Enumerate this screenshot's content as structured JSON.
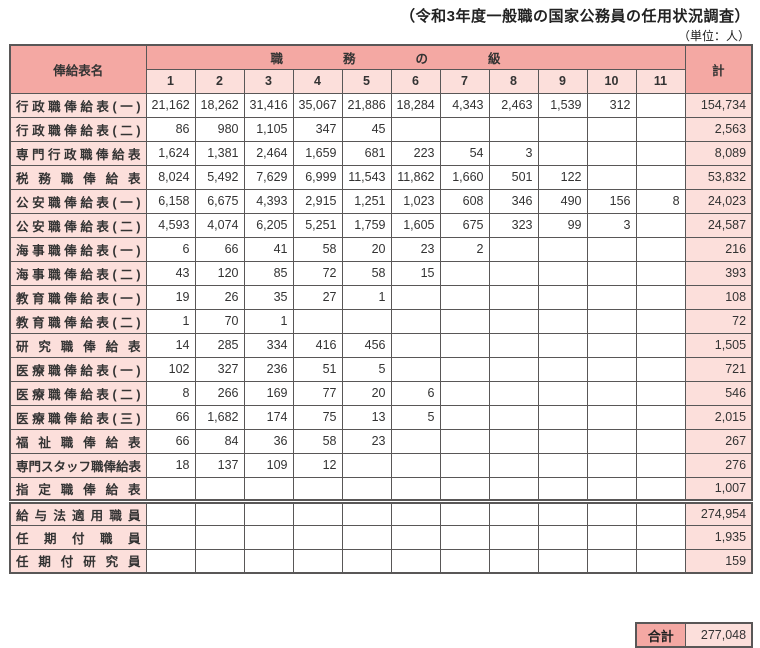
{
  "title": "（令和3年度一般職の国家公務員の任用状況調査）",
  "unit": "（単位：人）",
  "colors": {
    "header_bg": "#f4a8a3",
    "light_cell_bg": "#fcdfdb",
    "border": "#595757"
  },
  "table": {
    "name_header": "俸給表名",
    "grade_header": "職務の級",
    "total_header": "計",
    "grade_cols": [
      "1",
      "2",
      "3",
      "4",
      "5",
      "6",
      "7",
      "8",
      "9",
      "10",
      "11"
    ],
    "rows": [
      {
        "label": "行政職俸給表(一)",
        "sep": "group",
        "values": [
          "21,162",
          "18,262",
          "31,416",
          "35,067",
          "21,886",
          "18,284",
          "4,343",
          "2,463",
          "1,539",
          "312",
          ""
        ],
        "total": "154,734"
      },
      {
        "label": "行政職俸給表(二)",
        "sep": "sub",
        "values": [
          "86",
          "980",
          "1,105",
          "347",
          "45",
          "",
          "",
          "",
          "",
          "",
          ""
        ],
        "total": "2,563"
      },
      {
        "label": "専門行政職俸給表",
        "sep": "group",
        "values": [
          "1,624",
          "1,381",
          "2,464",
          "1,659",
          "681",
          "223",
          "54",
          "3",
          "",
          "",
          ""
        ],
        "total": "8,089"
      },
      {
        "label": "税務職俸給表",
        "sep": "group",
        "values": [
          "8,024",
          "5,492",
          "7,629",
          "6,999",
          "11,543",
          "11,862",
          "1,660",
          "501",
          "122",
          "",
          ""
        ],
        "total": "53,832"
      },
      {
        "label": "公安職俸給表(一)",
        "sep": "group",
        "values": [
          "6,158",
          "6,675",
          "4,393",
          "2,915",
          "1,251",
          "1,023",
          "608",
          "346",
          "490",
          "156",
          "8"
        ],
        "total": "24,023"
      },
      {
        "label": "公安職俸給表(二)",
        "sep": "sub",
        "values": [
          "4,593",
          "4,074",
          "6,205",
          "5,251",
          "1,759",
          "1,605",
          "675",
          "323",
          "99",
          "3",
          ""
        ],
        "total": "24,587"
      },
      {
        "label": "海事職俸給表(一)",
        "sep": "group",
        "values": [
          "6",
          "66",
          "41",
          "58",
          "20",
          "23",
          "2",
          "",
          "",
          "",
          ""
        ],
        "total": "216"
      },
      {
        "label": "海事職俸給表(二)",
        "sep": "sub",
        "values": [
          "43",
          "120",
          "85",
          "72",
          "58",
          "15",
          "",
          "",
          "",
          "",
          ""
        ],
        "total": "393"
      },
      {
        "label": "教育職俸給表(一)",
        "sep": "group",
        "values": [
          "19",
          "26",
          "35",
          "27",
          "1",
          "",
          "",
          "",
          "",
          "",
          ""
        ],
        "total": "108"
      },
      {
        "label": "教育職俸給表(二)",
        "sep": "sub",
        "values": [
          "1",
          "70",
          "1",
          "",
          "",
          "",
          "",
          "",
          "",
          "",
          ""
        ],
        "total": "72"
      },
      {
        "label": "研究職俸給表",
        "sep": "group",
        "values": [
          "14",
          "285",
          "334",
          "416",
          "456",
          "",
          "",
          "",
          "",
          "",
          ""
        ],
        "total": "1,505"
      },
      {
        "label": "医療職俸給表(一)",
        "sep": "group",
        "values": [
          "102",
          "327",
          "236",
          "51",
          "5",
          "",
          "",
          "",
          "",
          "",
          ""
        ],
        "total": "721"
      },
      {
        "label": "医療職俸給表(二)",
        "sep": "sub",
        "values": [
          "8",
          "266",
          "169",
          "77",
          "20",
          "6",
          "",
          "",
          "",
          "",
          ""
        ],
        "total": "546"
      },
      {
        "label": "医療職俸給表(三)",
        "sep": "sub",
        "values": [
          "66",
          "1,682",
          "174",
          "75",
          "13",
          "5",
          "",
          "",
          "",
          "",
          ""
        ],
        "total": "2,015"
      },
      {
        "label": "福祉職俸給表",
        "sep": "group",
        "values": [
          "66",
          "84",
          "36",
          "58",
          "23",
          "",
          "",
          "",
          "",
          "",
          ""
        ],
        "total": "267"
      },
      {
        "label": "専門スタッフ職俸給表",
        "sep": "group",
        "values": [
          "18",
          "137",
          "109",
          "12",
          "",
          "",
          "",
          "",
          "",
          "",
          ""
        ],
        "total": "276"
      },
      {
        "label": "指定職俸給表",
        "sep": "group",
        "values": [
          "",
          "",
          "",
          "",
          "",
          "",
          "",
          "",
          "",
          "",
          ""
        ],
        "total": "1,007"
      },
      {
        "label": "給与法適用職員",
        "sep": "double",
        "values": [
          "",
          "",
          "",
          "",
          "",
          "",
          "",
          "",
          "",
          "",
          ""
        ],
        "total": "274,954"
      },
      {
        "label": "任期付職員",
        "sep": "group",
        "values": [
          "",
          "",
          "",
          "",
          "",
          "",
          "",
          "",
          "",
          "",
          ""
        ],
        "total": "1,935"
      },
      {
        "label": "任期付研究員",
        "sep": "group",
        "values": [
          "",
          "",
          "",
          "",
          "",
          "",
          "",
          "",
          "",
          "",
          ""
        ],
        "total": "159"
      }
    ],
    "grand_total_label": "合計",
    "grand_total": "277,048"
  }
}
